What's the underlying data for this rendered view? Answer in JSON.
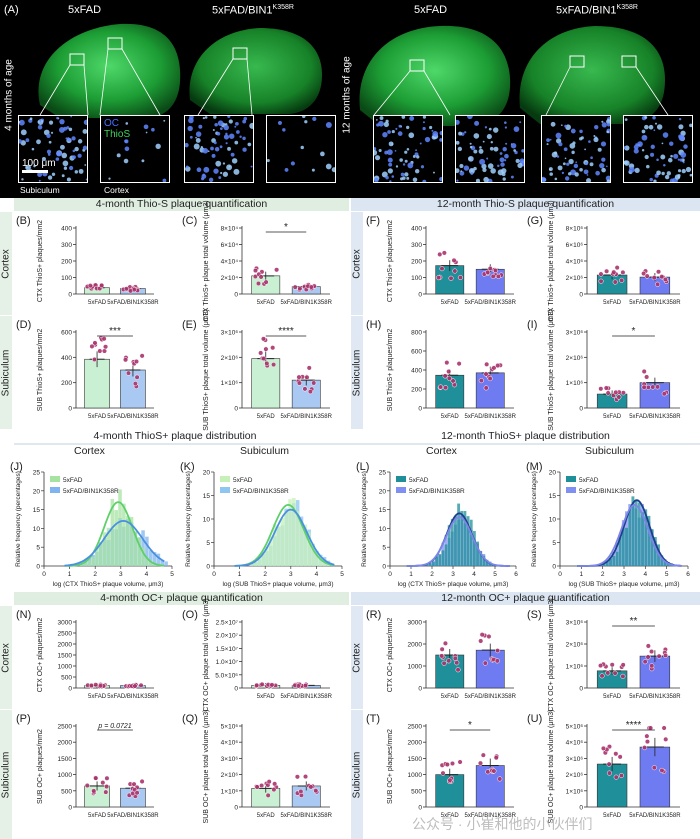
{
  "top": {
    "panel_a": "(A)",
    "age_4": "4 months of age",
    "age_12": "12 months of age",
    "h_5xfad": "5xFAD",
    "h_bin1": "5xFAD/BIN1",
    "h_bin1_sup": "K358R",
    "legend_oc": "OC",
    "legend_thios": "ThioS",
    "scale": "100 μm",
    "lbl_subiculum": "Subiculum",
    "lbl_cortex": "Cortex"
  },
  "sections": {
    "s1_left": "4-month Thio-S plaque quantification",
    "s1_right": "12-month Thio-S plaque quantification",
    "s2_left": "4-month ThioS+ plaque distribution",
    "s2_right": "12-month ThioS+ plaque distribution",
    "s3_left": "4-month OC+ plaque quantification",
    "s3_right": "12-month OC+ plaque quantification",
    "cortex": "Cortex",
    "subiculum": "Subiculum"
  },
  "colors": {
    "green_fill": "#c9f0d2",
    "blue_fill": "#a9c9f3",
    "teal_fill": "#1f8f9a",
    "purple_fill": "#6f7bf0",
    "dot": "#a8336d",
    "band_green": "#dfeee0",
    "band_blue": "#dbe6f2"
  },
  "watermark": "公众号 · 小崔和他的小伙伴们",
  "chart_data": [
    {
      "id": "B",
      "type": "bar",
      "categories": [
        "5xFAD",
        "5xFAD/BIN1K358R"
      ],
      "values": [
        38,
        33
      ],
      "ylabel": "CTX ThioS+ plaques/mm2",
      "ylim": [
        0,
        400
      ],
      "ticks": [
        0,
        100,
        200,
        300,
        400
      ],
      "tick_labels": [
        "0",
        "100",
        "200",
        "300",
        "400"
      ],
      "sig": ""
    },
    {
      "id": "C",
      "type": "bar",
      "categories": [
        "5xFAD",
        "5xFAD/BIN1K358R"
      ],
      "values": [
        22000,
        9000
      ],
      "ylabel": "CTX ThioS+ plaque total volume (μm3)",
      "ylim": [
        0,
        80000
      ],
      "ticks": [
        0,
        20000,
        40000,
        60000,
        80000
      ],
      "tick_labels": [
        "0",
        "2×10⁴",
        "4×10⁴",
        "6×10⁴",
        "8×10⁴"
      ],
      "sig": "*"
    },
    {
      "id": "D",
      "type": "bar",
      "categories": [
        "5xFAD",
        "5xFAD/BIN1K358R"
      ],
      "values": [
        385,
        300
      ],
      "ylabel": "SUB ThioS+ plaques/mm2",
      "ylim": [
        0,
        600
      ],
      "ticks": [
        0,
        200,
        400,
        600
      ],
      "tick_labels": [
        "0",
        "200",
        "400",
        "600"
      ],
      "sig": "***"
    },
    {
      "id": "E",
      "type": "bar",
      "categories": [
        "5xFAD",
        "5xFAD/BIN1K358R"
      ],
      "values": [
        1950000,
        1100000
      ],
      "ylabel": "SUB ThioS+ plaque total volume (μm3)",
      "ylim": [
        0,
        3000000
      ],
      "ticks": [
        0,
        1000000,
        2000000,
        3000000
      ],
      "tick_labels": [
        "0",
        "1×10⁶",
        "2×10⁶",
        "3×10⁶"
      ],
      "sig": "****"
    },
    {
      "id": "F",
      "type": "bar",
      "categories": [
        "5xFAD",
        "5xFAD/BIN1K358R"
      ],
      "values": [
        172,
        150
      ],
      "ylabel": "CTX ThioS+ plaques/mm2",
      "ylim": [
        0,
        400
      ],
      "ticks": [
        0,
        100,
        200,
        300,
        400
      ],
      "tick_labels": [
        "0",
        "100",
        "200",
        "300",
        "400"
      ],
      "sig": ""
    },
    {
      "id": "G",
      "type": "bar",
      "categories": [
        "5xFAD",
        "5xFAD/BIN1K358R"
      ],
      "values": [
        2300000,
        2050000
      ],
      "ylabel": "CTX ThioS+ plaque total volume (μm3)",
      "ylim": [
        0,
        8000000
      ],
      "ticks": [
        0,
        2000000,
        4000000,
        6000000,
        8000000
      ],
      "tick_labels": [
        "0",
        "2×10⁶",
        "4×10⁶",
        "6×10⁶",
        "8×10⁶"
      ],
      "sig": ""
    },
    {
      "id": "H",
      "type": "bar",
      "categories": [
        "5xFAD",
        "5xFAD/BIN1K358R"
      ],
      "values": [
        345,
        370
      ],
      "ylabel": "SUB ThioS+ plaques/mm2",
      "ylim": [
        0,
        800
      ],
      "ticks": [
        0,
        200,
        400,
        600,
        800
      ],
      "tick_labels": [
        "0",
        "200",
        "400",
        "600",
        "800"
      ],
      "sig": ""
    },
    {
      "id": "I",
      "type": "bar",
      "categories": [
        "5xFAD",
        "5xFAD/BIN1K358R"
      ],
      "values": [
        550000,
        1000000
      ],
      "ylabel": "SUB ThioS+ plaque total volume (μm3)",
      "ylim": [
        0,
        3000000
      ],
      "ticks": [
        0,
        1000000,
        2000000,
        3000000
      ],
      "tick_labels": [
        "0",
        "1×10⁶",
        "2×10⁶",
        "3×10⁶"
      ],
      "sig": "*"
    },
    {
      "id": "J",
      "type": "histogram",
      "title": "Cortex",
      "series": [
        {
          "name": "5xFAD"
        },
        {
          "name": "5xFAD/BIN1K358R"
        }
      ],
      "xlabel": "log (CTX ThioS+ plaque volume, μm3)",
      "ylabel": "Relative frequency (percentages)",
      "xlim": [
        0,
        5
      ],
      "ylim": [
        0,
        25
      ]
    },
    {
      "id": "K",
      "type": "histogram",
      "title": "Subiculum",
      "series": [
        {
          "name": "5xFAD"
        },
        {
          "name": "5xFAD/BIN1K358R"
        }
      ],
      "xlabel": "log (SUB ThioS+ plaque volume, μm3)",
      "ylabel": "Relative frequency (percentages)",
      "xlim": [
        0,
        5
      ],
      "ylim": [
        0,
        20
      ]
    },
    {
      "id": "L",
      "type": "histogram",
      "title": "Cortex",
      "series": [
        {
          "name": "5xFAD"
        },
        {
          "name": "5xFAD/BIN1K358R"
        }
      ],
      "xlabel": "log (CTX ThioS+ plaque volume, μm3)",
      "ylabel": "Relative frequency (percentages)",
      "xlim": [
        0,
        6
      ],
      "ylim": [
        0,
        25
      ]
    },
    {
      "id": "M",
      "type": "histogram",
      "title": "Subiculum",
      "series": [
        {
          "name": "5xFAD"
        },
        {
          "name": "5xFAD/BIN1K358R"
        }
      ],
      "xlabel": "log (SUB ThioS+ plaque volume, μm3)",
      "ylabel": "Relative frequency (percentages)",
      "xlim": [
        0,
        6
      ],
      "ylim": [
        0,
        20
      ]
    },
    {
      "id": "N",
      "type": "bar",
      "categories": [
        "5xFAD",
        "5xFAD/BIN1K358R"
      ],
      "values": [
        110,
        110
      ],
      "ylabel": "CTX OC+ plaques/mm2",
      "ylim": [
        0,
        3000
      ],
      "ticks": [
        0,
        500,
        1000,
        1500,
        2000,
        2500,
        3000
      ],
      "tick_labels": [
        "0",
        "500",
        "1000",
        "1500",
        "2000",
        "2500",
        "3000"
      ],
      "sig": ""
    },
    {
      "id": "O",
      "type": "bar",
      "categories": [
        "5xFAD",
        "5xFAD/BIN1K358R"
      ],
      "values": [
        1000000,
        1000000
      ],
      "ylabel": "CTX OC+ plaque total volume (μm3)",
      "ylim": [
        0,
        25000000
      ],
      "ticks": [
        0,
        5000000,
        10000000,
        15000000,
        20000000,
        25000000
      ],
      "tick_labels": [
        "0",
        "5.0×10⁶",
        "1.0×10⁷",
        "1.5×10⁷",
        "2.0×10⁷",
        "2.5×10⁷"
      ],
      "sig": ""
    },
    {
      "id": "P",
      "type": "bar",
      "categories": [
        "5xFAD",
        "5xFAD/BIN1K358R"
      ],
      "values": [
        650,
        580
      ],
      "ylabel": "SUB OC+ plaques/mm2",
      "ylim": [
        0,
        2500
      ],
      "ticks": [
        0,
        500,
        1000,
        1500,
        2000,
        2500
      ],
      "tick_labels": [
        "0",
        "500",
        "1000",
        "1500",
        "2000",
        "2500"
      ],
      "sig": "p = 0.0721"
    },
    {
      "id": "Q",
      "type": "bar",
      "categories": [
        "5xFAD",
        "5xFAD/BIN1K358R"
      ],
      "values": [
        1150000,
        1300000
      ],
      "ylabel": "SUB OC+ plaque total volume (μm3)",
      "ylim": [
        0,
        5000000
      ],
      "ticks": [
        0,
        1000000,
        2000000,
        3000000,
        4000000,
        5000000
      ],
      "tick_labels": [
        "0",
        "1×10⁶",
        "2×10⁶",
        "3×10⁶",
        "4×10⁶",
        "5×10⁶"
      ],
      "sig": ""
    },
    {
      "id": "R",
      "type": "bar",
      "categories": [
        "5xFAD",
        "5xFAD/BIN1K358R"
      ],
      "values": [
        1500,
        1720
      ],
      "ylabel": "CTX OC+ plaques/mm2",
      "ylim": [
        0,
        3000
      ],
      "ticks": [
        0,
        1000,
        2000,
        3000
      ],
      "tick_labels": [
        "0",
        "1000",
        "2000",
        "3000"
      ],
      "sig": ""
    },
    {
      "id": "S",
      "type": "bar",
      "categories": [
        "5xFAD",
        "5xFAD/BIN1K358R"
      ],
      "values": [
        780000,
        1450000
      ],
      "ylabel": "CTX OC+ plaque total volume (μm3)",
      "ylim": [
        0,
        3000000
      ],
      "ticks": [
        0,
        1000000,
        2000000,
        3000000
      ],
      "tick_labels": [
        "0",
        "1×10⁶",
        "2×10⁶",
        "3×10⁶"
      ],
      "sig": "**"
    },
    {
      "id": "T",
      "type": "bar",
      "categories": [
        "5xFAD",
        "5xFAD/BIN1K358R"
      ],
      "values": [
        1000,
        1280
      ],
      "ylabel": "SUB OC+ plaques/mm2",
      "ylim": [
        0,
        2500
      ],
      "ticks": [
        0,
        500,
        1000,
        1500,
        2000,
        2500
      ],
      "tick_labels": [
        "0",
        "500",
        "1000",
        "1500",
        "2000",
        "2500"
      ],
      "sig": "*"
    },
    {
      "id": "U",
      "type": "bar",
      "categories": [
        "5xFAD",
        "5xFAD/BIN1K358R"
      ],
      "values": [
        2650000,
        3700000
      ],
      "ylabel": "SUB OC+ plaque total volume (μm3)",
      "ylim": [
        0,
        5000000
      ],
      "ticks": [
        0,
        1000000,
        2000000,
        3000000,
        4000000,
        5000000
      ],
      "tick_labels": [
        "0",
        "1×10⁶",
        "2×10⁶",
        "3×10⁶",
        "4×10⁶",
        "5×10⁶"
      ],
      "sig": "****"
    }
  ]
}
